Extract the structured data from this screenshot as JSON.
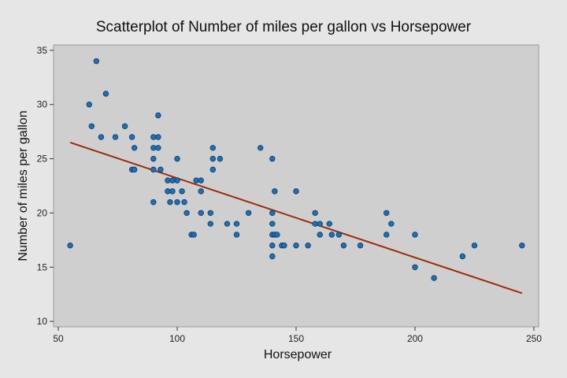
{
  "chart_data": {
    "type": "scatter",
    "title": "Scatterplot of Number of miles per gallon vs Horsepower",
    "xlabel": "Horsepower",
    "ylabel": "Number of miles per gallon",
    "xlim": [
      48,
      252
    ],
    "ylim": [
      9.5,
      35.5
    ],
    "x_ticks": [
      50,
      100,
      150,
      200,
      250
    ],
    "y_ticks": [
      10,
      15,
      20,
      25,
      30,
      35
    ],
    "grid": false,
    "legend": "none",
    "colors": {
      "background": "#e6e6e6",
      "plot_area": "#cfcfcf",
      "marker_fill": "#1f6fb5",
      "marker_stroke": "#0b3a66",
      "fit_line": "#9b2c0c"
    },
    "points": [
      {
        "x": 55,
        "y": 17
      },
      {
        "x": 63,
        "y": 30
      },
      {
        "x": 64,
        "y": 28
      },
      {
        "x": 66,
        "y": 34
      },
      {
        "x": 68,
        "y": 27
      },
      {
        "x": 70,
        "y": 31
      },
      {
        "x": 74,
        "y": 27
      },
      {
        "x": 78,
        "y": 28
      },
      {
        "x": 81,
        "y": 27
      },
      {
        "x": 81,
        "y": 24
      },
      {
        "x": 82,
        "y": 26
      },
      {
        "x": 82,
        "y": 24
      },
      {
        "x": 90,
        "y": 27
      },
      {
        "x": 90,
        "y": 26
      },
      {
        "x": 90,
        "y": 25
      },
      {
        "x": 90,
        "y": 24
      },
      {
        "x": 90,
        "y": 21
      },
      {
        "x": 92,
        "y": 29
      },
      {
        "x": 92,
        "y": 27
      },
      {
        "x": 92,
        "y": 26
      },
      {
        "x": 93,
        "y": 24
      },
      {
        "x": 96,
        "y": 23
      },
      {
        "x": 96,
        "y": 22
      },
      {
        "x": 97,
        "y": 21
      },
      {
        "x": 98,
        "y": 23
      },
      {
        "x": 98,
        "y": 22
      },
      {
        "x": 100,
        "y": 25
      },
      {
        "x": 100,
        "y": 23
      },
      {
        "x": 100,
        "y": 21
      },
      {
        "x": 102,
        "y": 22
      },
      {
        "x": 103,
        "y": 21
      },
      {
        "x": 104,
        "y": 20
      },
      {
        "x": 106,
        "y": 18
      },
      {
        "x": 107,
        "y": 18
      },
      {
        "x": 108,
        "y": 23
      },
      {
        "x": 110,
        "y": 23
      },
      {
        "x": 110,
        "y": 22
      },
      {
        "x": 110,
        "y": 20
      },
      {
        "x": 114,
        "y": 20
      },
      {
        "x": 114,
        "y": 19
      },
      {
        "x": 115,
        "y": 26
      },
      {
        "x": 115,
        "y": 25
      },
      {
        "x": 115,
        "y": 24
      },
      {
        "x": 118,
        "y": 25
      },
      {
        "x": 121,
        "y": 19
      },
      {
        "x": 125,
        "y": 19
      },
      {
        "x": 125,
        "y": 18
      },
      {
        "x": 130,
        "y": 20
      },
      {
        "x": 135,
        "y": 26
      },
      {
        "x": 140,
        "y": 25
      },
      {
        "x": 140,
        "y": 20
      },
      {
        "x": 140,
        "y": 19
      },
      {
        "x": 140,
        "y": 18
      },
      {
        "x": 140,
        "y": 17
      },
      {
        "x": 140,
        "y": 16
      },
      {
        "x": 141,
        "y": 22
      },
      {
        "x": 141,
        "y": 18
      },
      {
        "x": 142,
        "y": 18
      },
      {
        "x": 144,
        "y": 17
      },
      {
        "x": 145,
        "y": 17
      },
      {
        "x": 150,
        "y": 22
      },
      {
        "x": 150,
        "y": 17
      },
      {
        "x": 155,
        "y": 17
      },
      {
        "x": 158,
        "y": 20
      },
      {
        "x": 158,
        "y": 19
      },
      {
        "x": 160,
        "y": 19
      },
      {
        "x": 160,
        "y": 18
      },
      {
        "x": 164,
        "y": 19
      },
      {
        "x": 165,
        "y": 18
      },
      {
        "x": 168,
        "y": 18
      },
      {
        "x": 170,
        "y": 17
      },
      {
        "x": 177,
        "y": 17
      },
      {
        "x": 188,
        "y": 20
      },
      {
        "x": 188,
        "y": 18
      },
      {
        "x": 190,
        "y": 19
      },
      {
        "x": 200,
        "y": 18
      },
      {
        "x": 200,
        "y": 15
      },
      {
        "x": 208,
        "y": 14
      },
      {
        "x": 220,
        "y": 16
      },
      {
        "x": 225,
        "y": 17
      },
      {
        "x": 245,
        "y": 17
      }
    ],
    "fit_line": {
      "x": [
        55,
        245
      ],
      "y": [
        26.5,
        12.6
      ]
    }
  }
}
